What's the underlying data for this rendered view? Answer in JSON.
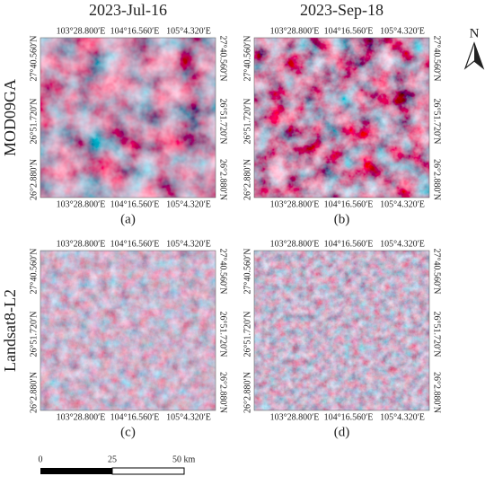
{
  "columns": [
    "2023-Jul-16",
    "2023-Sep-18"
  ],
  "rows": [
    "MOD09GA",
    "Landsat8-L2"
  ],
  "panels": [
    "(a)",
    "(b)",
    "(c)",
    "(d)"
  ],
  "longitudes": [
    "103°28.800′E",
    "104°16.560′E",
    "105°4.320′E"
  ],
  "latitudes": [
    "27°40.560′N",
    "26°51.720′N",
    "26°2.880′N"
  ],
  "scale_bar": [
    "0",
    "25",
    "50 km"
  ],
  "north": "N"
}
